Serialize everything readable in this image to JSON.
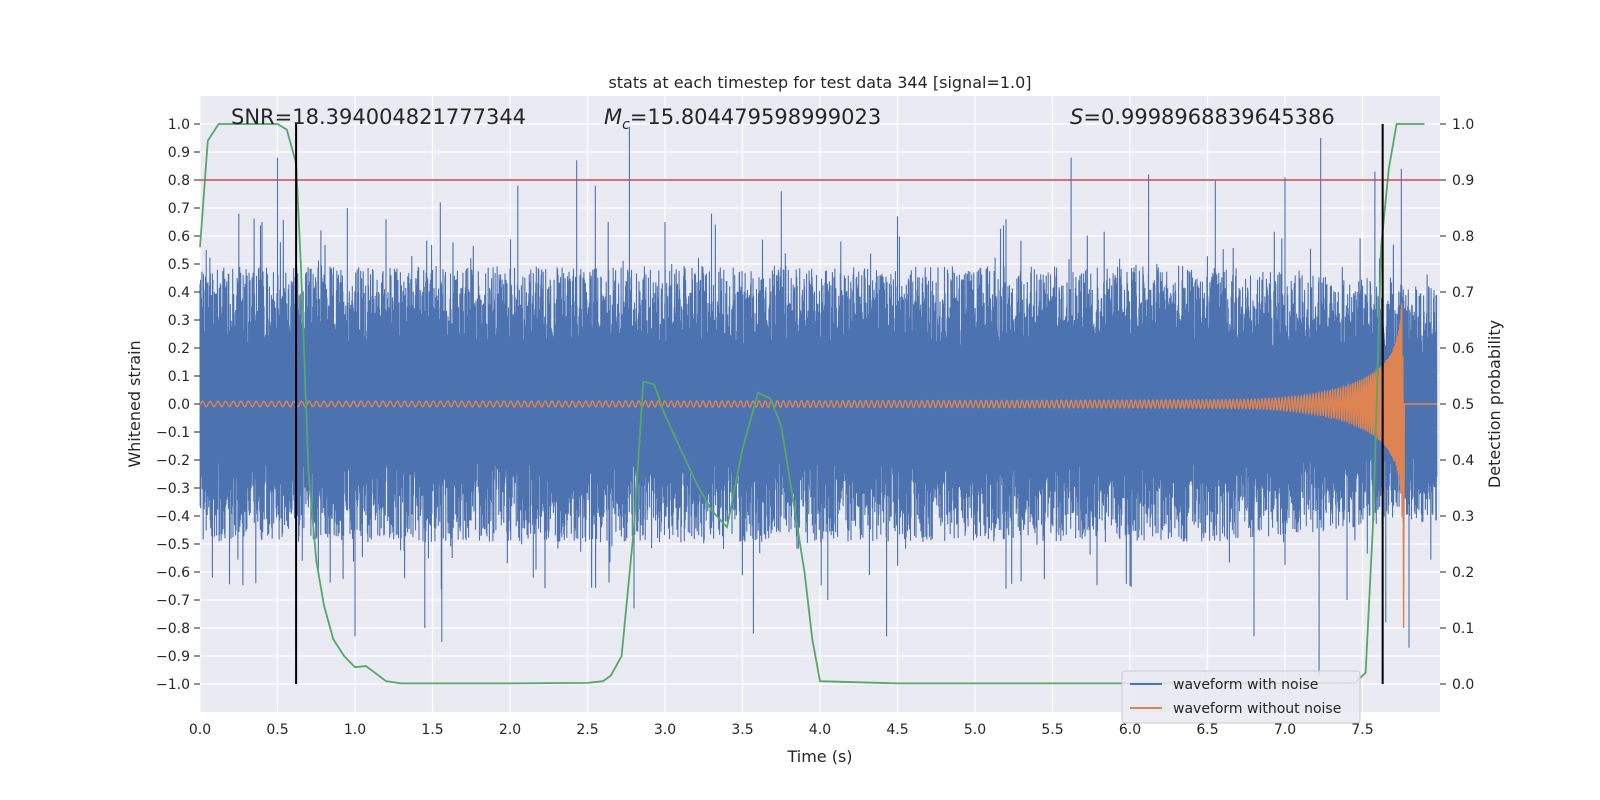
{
  "chart_data": {
    "type": "line",
    "title": "stats at each timestep for test data 344 [signal=1.0]",
    "xlabel": "Time (s)",
    "ylabel": "Whitened strain",
    "y2label": "Detection probability",
    "xlim": [
      0.0,
      8.0
    ],
    "ylim": [
      -1.1,
      1.1
    ],
    "y2lim": [
      -0.05,
      1.05
    ],
    "x_ticks": [
      "0.0",
      "0.5",
      "1.0",
      "1.5",
      "2.0",
      "2.5",
      "3.0",
      "3.5",
      "4.0",
      "4.5",
      "5.0",
      "5.5",
      "6.0",
      "6.5",
      "7.0",
      "7.5"
    ],
    "y_ticks": [
      "1.0",
      "0.9",
      "0.8",
      "0.7",
      "0.6",
      "0.5",
      "0.4",
      "0.3",
      "0.2",
      "0.1",
      "0.0",
      "−0.1",
      "−0.2",
      "−0.3",
      "−0.4",
      "−0.5",
      "−0.6",
      "−0.7",
      "−0.8",
      "−0.9",
      "−1.0"
    ],
    "y2_ticks": [
      "1.0",
      "0.9",
      "0.8",
      "0.7",
      "0.6",
      "0.5",
      "0.4",
      "0.3",
      "0.2",
      "0.1",
      "0.0"
    ],
    "grid": true,
    "legend_position": "lower-right",
    "annotations": {
      "snr": "SNR=18.394004821777344",
      "mc_symbol": "M",
      "mc_sub": "c",
      "mc_value": "=15.804479598999023",
      "s_symbol": "S",
      "s_value": "=0.9998968839645386"
    },
    "threshold_y2": 0.9,
    "vertical_lines_x": [
      0.62,
      7.63
    ],
    "series": [
      {
        "name": "waveform with noise",
        "color": "#4c72b0",
        "description_noise_amplitude": 0.38,
        "spike_peaks": [
          {
            "x": 0.04,
            "y": 0.55
          },
          {
            "x": 0.25,
            "y": 0.68
          },
          {
            "x": 0.4,
            "y": 0.65
          },
          {
            "x": 0.5,
            "y": 0.88
          },
          {
            "x": 0.62,
            "y": 0.75
          },
          {
            "x": 0.78,
            "y": 0.62
          },
          {
            "x": 0.95,
            "y": 0.7
          },
          {
            "x": 1.2,
            "y": 0.66
          },
          {
            "x": 1.55,
            "y": 0.72
          },
          {
            "x": 2.05,
            "y": 0.78
          },
          {
            "x": 2.43,
            "y": 0.87
          },
          {
            "x": 2.55,
            "y": 0.78
          },
          {
            "x": 2.77,
            "y": 0.99
          },
          {
            "x": 3.0,
            "y": 0.65
          },
          {
            "x": 3.3,
            "y": 0.68
          },
          {
            "x": 3.75,
            "y": 0.76
          },
          {
            "x": 4.5,
            "y": 0.67
          },
          {
            "x": 5.2,
            "y": 0.66
          },
          {
            "x": 5.62,
            "y": 0.88
          },
          {
            "x": 6.12,
            "y": 0.82
          },
          {
            "x": 6.55,
            "y": 0.8
          },
          {
            "x": 7.0,
            "y": 0.81
          },
          {
            "x": 7.23,
            "y": 0.95
          },
          {
            "x": 7.58,
            "y": 0.83
          },
          {
            "x": 7.75,
            "y": 0.84
          }
        ],
        "spike_troughs": [
          {
            "x": 0.08,
            "y": -0.62
          },
          {
            "x": 0.36,
            "y": -0.64
          },
          {
            "x": 0.66,
            "y": -0.56
          },
          {
            "x": 1.0,
            "y": -0.83
          },
          {
            "x": 1.45,
            "y": -0.8
          },
          {
            "x": 1.56,
            "y": -0.85
          },
          {
            "x": 2.15,
            "y": -0.62
          },
          {
            "x": 2.8,
            "y": -0.73
          },
          {
            "x": 3.57,
            "y": -0.82
          },
          {
            "x": 4.05,
            "y": -0.7
          },
          {
            "x": 4.43,
            "y": -0.83
          },
          {
            "x": 5.2,
            "y": -0.66
          },
          {
            "x": 6.0,
            "y": -0.65
          },
          {
            "x": 6.8,
            "y": -0.83
          },
          {
            "x": 7.22,
            "y": -0.97
          },
          {
            "x": 7.4,
            "y": -0.7
          },
          {
            "x": 7.65,
            "y": -0.78
          },
          {
            "x": 7.8,
            "y": -0.87
          }
        ]
      },
      {
        "name": "waveform without noise",
        "color": "#dd8452",
        "chirp_end_x": 7.76,
        "chirp_start_amplitude": 0.012,
        "chirp_peak_amplitude": 0.7,
        "chirp_min_amplitude": -0.8
      },
      {
        "name": "detection probability",
        "color": "#55a868",
        "axis": "y2",
        "x": [
          0.0,
          0.05,
          0.12,
          0.2,
          0.3,
          0.4,
          0.5,
          0.56,
          0.62,
          0.65,
          0.7,
          0.75,
          0.8,
          0.86,
          0.93,
          1.0,
          1.07,
          1.13,
          1.2,
          1.3,
          1.5,
          2.0,
          2.5,
          2.6,
          2.65,
          2.72,
          2.8,
          2.86,
          2.93,
          3.0,
          3.1,
          3.2,
          3.3,
          3.4,
          3.5,
          3.6,
          3.68,
          3.75,
          3.82,
          3.9,
          3.95,
          4.0,
          4.5,
          5.0,
          6.0,
          7.0,
          7.45,
          7.52,
          7.57,
          7.62,
          7.67,
          7.72,
          7.8,
          7.9
        ],
        "values": [
          0.78,
          0.97,
          1.0,
          1.0,
          1.0,
          1.0,
          1.0,
          0.99,
          0.93,
          0.75,
          0.38,
          0.22,
          0.14,
          0.08,
          0.05,
          0.03,
          0.032,
          0.02,
          0.005,
          0.001,
          0.001,
          0.001,
          0.002,
          0.005,
          0.015,
          0.05,
          0.28,
          0.54,
          0.535,
          0.48,
          0.42,
          0.36,
          0.31,
          0.28,
          0.42,
          0.52,
          0.51,
          0.46,
          0.34,
          0.2,
          0.08,
          0.005,
          0.001,
          0.001,
          0.001,
          0.001,
          0.002,
          0.02,
          0.3,
          0.78,
          0.92,
          1.0,
          1.0,
          1.0
        ]
      }
    ],
    "legend": [
      {
        "label": "waveform with noise",
        "color": "#4c72b0"
      },
      {
        "label": "waveform without noise",
        "color": "#dd8452"
      }
    ],
    "colors": {
      "plot_bg": "#eaeaf2",
      "grid": "#ffffff",
      "threshold": "#c44e52",
      "vline": "#000000"
    }
  }
}
